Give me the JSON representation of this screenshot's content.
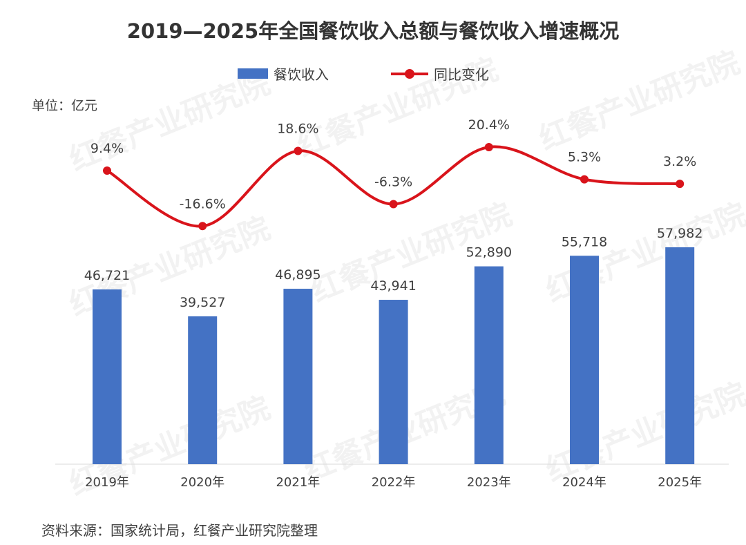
{
  "watermark": "红餐产业研究院",
  "source": "资料来源：国家统计局，红餐产业研究院整理",
  "unit_label": "单位：亿元",
  "chart_data": {
    "type": "bar+line",
    "title": "2019—2025年全国餐饮收入总额与餐饮收入增速概况",
    "categories": [
      "2019年",
      "2020年",
      "2021年",
      "2022年",
      "2023年",
      "2024年",
      "2025年"
    ],
    "series": [
      {
        "name": "餐饮收入",
        "type": "bar",
        "color": "#4472c4",
        "values": [
          46721,
          39527,
          46895,
          43941,
          52890,
          55718,
          57982
        ],
        "labels": [
          "46,721",
          "39,527",
          "46,895",
          "43,941",
          "52,890",
          "55,718",
          "57,982"
        ]
      },
      {
        "name": "同比变化",
        "type": "line",
        "color": "#d9141b",
        "values": [
          9.4,
          -16.6,
          18.6,
          -6.3,
          20.4,
          5.3,
          3.2
        ],
        "labels": [
          "9.4%",
          "-16.6%",
          "18.6%",
          "-6.3%",
          "20.4%",
          "5.3%",
          "3.2%"
        ]
      }
    ],
    "ylabel": "单位：亿元",
    "legend": "top-center",
    "grid": false
  }
}
